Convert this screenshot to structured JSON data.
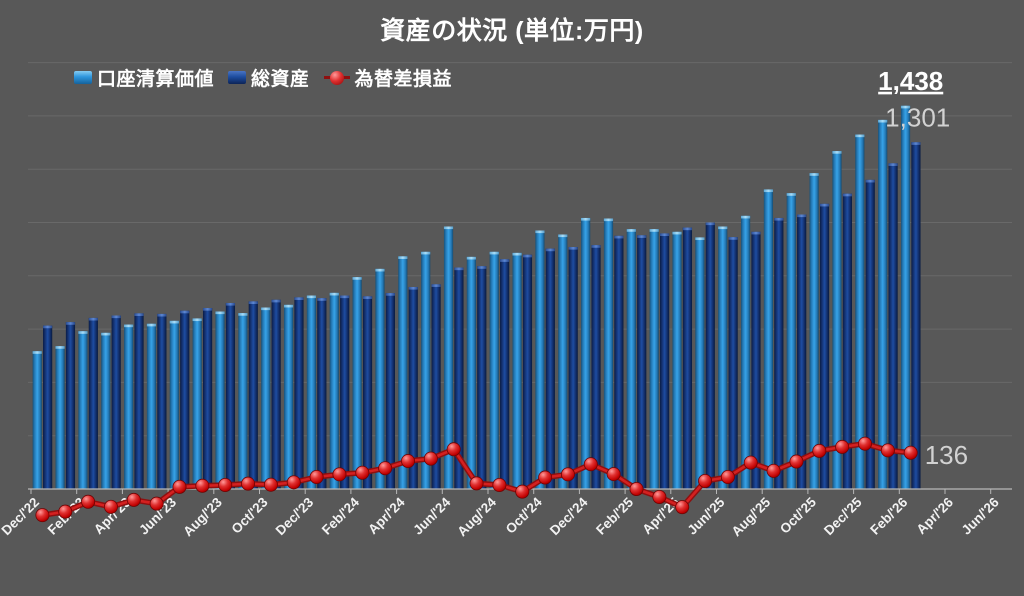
{
  "title": "資産の状況 (単位:万円)",
  "legend": {
    "items": [
      {
        "label": "口座清算価値",
        "swatch": "bar-light"
      },
      {
        "label": "総資産",
        "swatch": "bar-dark"
      },
      {
        "label": "為替差損益",
        "swatch": "line-marker"
      }
    ]
  },
  "colors": {
    "background": "#585858",
    "account_value_bar": "#2e96dd",
    "total_assets_bar": "#1d4da0",
    "fx_line": "#c00000",
    "gridline": "#696969",
    "axis": "#b8b8b8",
    "title_text": "#ffffff",
    "muted_label_text": "#d2d2d2"
  },
  "chart_data": {
    "type": "bar",
    "subtype": "clustered-bars-with-line",
    "title": "資産の状況 (単位:万円)",
    "unit": "万円",
    "grid": true,
    "legend_position": "top-left",
    "ylim": [
      0,
      1600
    ],
    "gridline_step": 200,
    "x_axis_total_slots": 43,
    "x_axis_tick_labels": [
      "Dec/'22",
      "Feb/'23",
      "Apr/'23",
      "Jun/'23",
      "Aug/'23",
      "Oct/'23",
      "Dec/'23",
      "Feb/'24",
      "Apr/'24",
      "Jun/'24",
      "Aug/'24",
      "Oct/'24",
      "Dec/'24",
      "Feb/'25",
      "Apr/'25",
      "Jun/'25",
      "Aug/'25",
      "Oct/'25",
      "Dec/'25",
      "Feb/'26",
      "Apr/'26",
      "Jun/'26"
    ],
    "categories": [
      "Dec/'22",
      "Jan/'23",
      "Feb/'23",
      "Mar/'23",
      "Apr/'23",
      "May/'23",
      "Jun/'23",
      "Jul/'23",
      "Aug/'23",
      "Sep/'23",
      "Oct/'23",
      "Nov/'23",
      "Dec/'23",
      "Jan/'24",
      "Feb/'24",
      "Mar/'24",
      "Apr/'24",
      "May/'24",
      "Jun/'24",
      "Jul/'24",
      "Aug/'24",
      "Sep/'24",
      "Oct/'24",
      "Nov/'24",
      "Dec/'24",
      "Jan/'25",
      "Feb/'25",
      "Mar/'25",
      "Apr/'25",
      "May/'25",
      "Jun/'25",
      "Jul/'25",
      "Aug/'25",
      "Sep/'25",
      "Oct/'25",
      "Nov/'25",
      "Dec/'25",
      "Jan/'26",
      "Feb/'26"
    ],
    "series": [
      {
        "name": "口座清算価値",
        "type": "bar",
        "color": "#2e96dd",
        "values": [
          517,
          536,
          592,
          586,
          617,
          620,
          631,
          640,
          666,
          660,
          681,
          691,
          726,
          736,
          795,
          826,
          873,
          890,
          985,
          871,
          890,
          886,
          970,
          955,
          1017,
          1015,
          975,
          975,
          965,
          944,
          985,
          1025,
          1124,
          1110,
          1185,
          1268,
          1330,
          1385,
          1438
        ]
      },
      {
        "name": "総資産",
        "type": "bar",
        "color": "#1d4da0",
        "values": [
          613,
          626,
          642,
          651,
          659,
          657,
          669,
          679,
          698,
          704,
          710,
          719,
          716,
          726,
          723,
          735,
          758,
          768,
          831,
          836,
          862,
          879,
          902,
          908,
          915,
          950,
          952,
          959,
          981,
          1000,
          945,
          965,
          1017,
          1030,
          1070,
          1108,
          1160,
          1222,
          1301
        ]
      },
      {
        "name": "為替差損益",
        "type": "line",
        "color": "#c00000",
        "values": [
          -98,
          -85,
          -48,
          -67,
          -41,
          -55,
          8,
          12,
          15,
          20,
          16,
          25,
          45,
          55,
          61,
          78,
          105,
          114,
          149,
          21,
          15,
          -10,
          43,
          55,
          93,
          56,
          0,
          -30,
          -68,
          30,
          45,
          99,
          68,
          103,
          143,
          158,
          170,
          145,
          136
        ]
      }
    ],
    "end_labels": [
      {
        "series": "口座清算価値",
        "text": "1,438",
        "emphasis": true
      },
      {
        "series": "総資産",
        "text": "1,301",
        "emphasis": false
      },
      {
        "series": "為替差損益",
        "text": "136",
        "emphasis": false
      }
    ]
  }
}
